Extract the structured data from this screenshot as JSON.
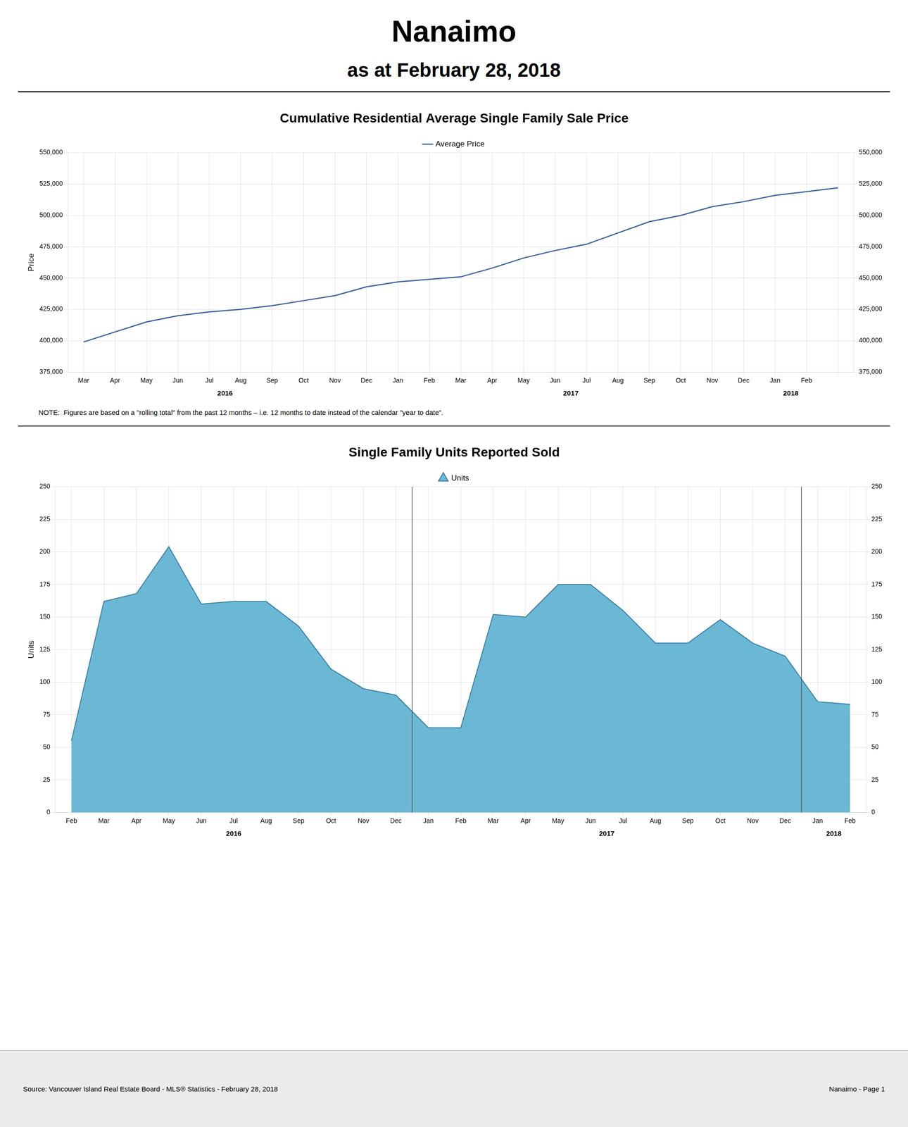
{
  "title": "Nanaimo",
  "subtitle": "as at February 28, 2018",
  "separator_color": "#333333",
  "footer_left": "Source: Vancouver Island Real Estate Board - MLS® Statistics - February 28, 2018",
  "footer_right": "Nanaimo - Page 1",
  "chart_data": [
    {
      "type": "line",
      "title": "Cumulative Residential Average Single Family Sale Price",
      "categories": [
        "Mar",
        "Apr",
        "May",
        "Jun",
        "Jul",
        "Aug",
        "Sep",
        "Oct",
        "Nov",
        "Dec",
        "Jan",
        "Feb",
        "Mar",
        "Apr",
        "May",
        "Jun",
        "Jul",
        "Aug",
        "Sep",
        "Oct",
        "Nov",
        "Dec",
        "Jan",
        "Feb",
        null
      ],
      "series": [
        {
          "name": "Average Price",
          "color": "#3A5FA0",
          "marker": "line",
          "values": [
            399000,
            407000,
            415000,
            420000,
            423000,
            425000,
            428000,
            432000,
            436000,
            443000,
            447000,
            449000,
            451000,
            458000,
            466000,
            472000,
            477000,
            486000,
            495000,
            500000,
            507000,
            511000,
            516000,
            519000,
            522000
          ]
        }
      ],
      "ylabel": "Price",
      "ylim": [
        375000,
        550000
      ],
      "yticks": [
        {
          "value": 375000,
          "label": "375,000"
        },
        {
          "value": 400000,
          "label": "400,000"
        },
        {
          "value": 425000,
          "label": "425,000"
        },
        {
          "value": 450000,
          "label": "450,000"
        },
        {
          "value": 475000,
          "label": "475,000"
        },
        {
          "value": 500000,
          "label": "500,000"
        },
        {
          "value": 525000,
          "label": "525,000"
        },
        {
          "value": 550000,
          "label": "550,000"
        }
      ],
      "y2lim": [
        375000,
        550000
      ],
      "y2ticks": [
        {
          "value": 375000,
          "label": "375,000"
        },
        {
          "value": 400000,
          "label": "400,000"
        },
        {
          "value": 425000,
          "label": "425,000"
        },
        {
          "value": 450000,
          "label": "450,000"
        },
        {
          "value": 475000,
          "label": "475,000"
        },
        {
          "value": 500000,
          "label": "500,000"
        },
        {
          "value": 525000,
          "label": "525,000"
        },
        {
          "value": 550000,
          "label": "550,000"
        }
      ],
      "grid": true,
      "legend": "top",
      "annotations": [
        {
          "text": "2016",
          "x": 4.5
        },
        {
          "text": "2017",
          "x": 15.5
        },
        {
          "text": "2018",
          "x": 22.5
        }
      ],
      "note": "NOTE:  Figures are based on a \"rolling total\" from the past 12 months – i.e. 12 months to date instead of the calendar \"year to date\"."
    },
    {
      "type": "area",
      "title": "Single Family Units Reported Sold",
      "categories": [
        "Feb",
        "Mar",
        "Apr",
        "May",
        "Jun",
        "Jul",
        "Aug",
        "Sep",
        "Oct",
        "Nov",
        "Dec",
        "Jan",
        "Feb",
        "Mar",
        "Apr",
        "May",
        "Jun",
        "Jul",
        "Aug",
        "Sep",
        "Oct",
        "Nov",
        "Dec",
        "Jan",
        "Feb"
      ],
      "series": [
        {
          "name": "Units",
          "color": "#6BB8D4",
          "line_color": "#3A7EAA",
          "marker": "triangle",
          "values": [
            55,
            162,
            168,
            204,
            160,
            162,
            162,
            143,
            110,
            95,
            90,
            65,
            65,
            152,
            150,
            175,
            175,
            155,
            130,
            130,
            148,
            130,
            120,
            85,
            83
          ]
        }
      ],
      "ylabel": "Units",
      "ylim": [
        0,
        250
      ],
      "yticks": [
        0,
        25,
        50,
        75,
        100,
        125,
        150,
        175,
        200,
        225,
        250
      ],
      "y2lim": [
        0,
        250
      ],
      "y2ticks": [
        0,
        25,
        50,
        75,
        100,
        125,
        150,
        175,
        200,
        225,
        250
      ],
      "grid": true,
      "legend": "top",
      "vlines": [
        10.5,
        22.5
      ],
      "annotations": [
        {
          "text": "2016",
          "x": 5.0
        },
        {
          "text": "2017",
          "x": 16.5
        },
        {
          "text": "2018",
          "x": 23.5
        }
      ]
    }
  ]
}
